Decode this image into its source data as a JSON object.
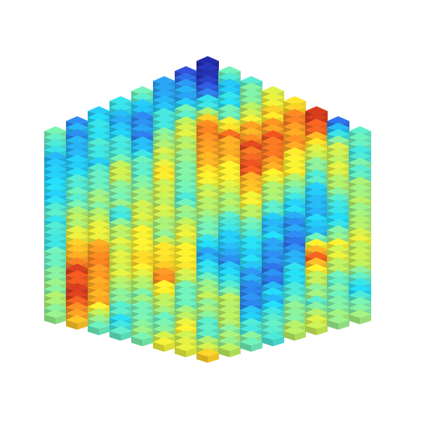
{
  "chart_data": {
    "type": "heatmap",
    "subtype": "hexbin-3d",
    "title": "",
    "xlabel": "",
    "ylabel": "",
    "zlabel": "",
    "grid": false,
    "legend": "none",
    "axes_visible": false,
    "colormap": "jet",
    "colormap_stops": [
      "#1a1a8f",
      "#2f4fd6",
      "#2a8fe8",
      "#22d3ee",
      "#6ee7b0",
      "#b7e55a",
      "#f5e62b",
      "#f5a623",
      "#e8561f",
      "#b11c1c"
    ],
    "value_range": [
      0,
      1
    ],
    "grid_radius": 7,
    "columns": [
      {
        "q": -7,
        "values": [
          0.42,
          0.3,
          0.34,
          0.36,
          0.4,
          0.44,
          0.48,
          0.52
        ]
      },
      {
        "q": -6,
        "values": [
          0.22,
          0.28,
          0.35,
          0.4,
          0.55,
          0.7,
          0.92,
          0.95,
          0.7
        ]
      },
      {
        "q": -5,
        "values": [
          0.3,
          0.36,
          0.34,
          0.45,
          0.5,
          0.6,
          0.85,
          0.8,
          0.74,
          0.45
        ]
      },
      {
        "q": -4,
        "values": [
          0.35,
          0.28,
          0.4,
          0.55,
          0.5,
          0.42,
          0.58,
          0.62,
          0.55,
          0.4,
          0.38
        ]
      },
      {
        "q": -3,
        "values": [
          0.45,
          0.25,
          0.22,
          0.38,
          0.48,
          0.55,
          0.6,
          0.7,
          0.65,
          0.5,
          0.45,
          0.5
        ]
      },
      {
        "q": -2,
        "values": [
          0.2,
          0.3,
          0.4,
          0.55,
          0.65,
          0.6,
          0.55,
          0.5,
          0.72,
          0.8,
          0.55,
          0.45,
          0.6
        ]
      },
      {
        "q": -1,
        "values": [
          0.15,
          0.25,
          0.45,
          0.6,
          0.5,
          0.45,
          0.4,
          0.55,
          0.62,
          0.7,
          0.5,
          0.45,
          0.62,
          0.58
        ]
      },
      {
        "q": 0,
        "values": [
          0.08,
          0.1,
          0.35,
          0.8,
          0.82,
          0.7,
          0.58,
          0.55,
          0.45,
          0.25,
          0.35,
          0.55,
          0.48,
          0.4,
          0.7
        ]
      },
      {
        "q": 1,
        "values": [
          0.4,
          0.3,
          0.45,
          0.85,
          0.75,
          0.65,
          0.55,
          0.4,
          0.3,
          0.22,
          0.4,
          0.6,
          0.5,
          0.55
        ]
      },
      {
        "q": 2,
        "values": [
          0.45,
          0.5,
          0.75,
          0.88,
          0.85,
          0.7,
          0.55,
          0.35,
          0.32,
          0.25,
          0.2,
          0.38,
          0.45
        ]
      },
      {
        "q": 3,
        "values": [
          0.6,
          0.7,
          0.9,
          0.8,
          0.6,
          0.45,
          0.3,
          0.28,
          0.15,
          0.28,
          0.35,
          0.42
        ]
      },
      {
        "q": 4,
        "values": [
          0.7,
          0.85,
          0.75,
          0.65,
          0.4,
          0.25,
          0.2,
          0.3,
          0.35,
          0.48,
          0.52
        ]
      },
      {
        "q": 5,
        "values": [
          0.95,
          0.8,
          0.55,
          0.35,
          0.25,
          0.3,
          0.92,
          0.55,
          0.45,
          0.6
        ]
      },
      {
        "q": 6,
        "values": [
          0.15,
          0.55,
          0.6,
          0.45,
          0.3,
          0.65,
          0.5,
          0.42,
          0.55
        ]
      },
      {
        "q": 7,
        "values": [
          0.45,
          0.4,
          0.5,
          0.55,
          0.6,
          0.58,
          0.35,
          0.55
        ]
      }
    ]
  }
}
